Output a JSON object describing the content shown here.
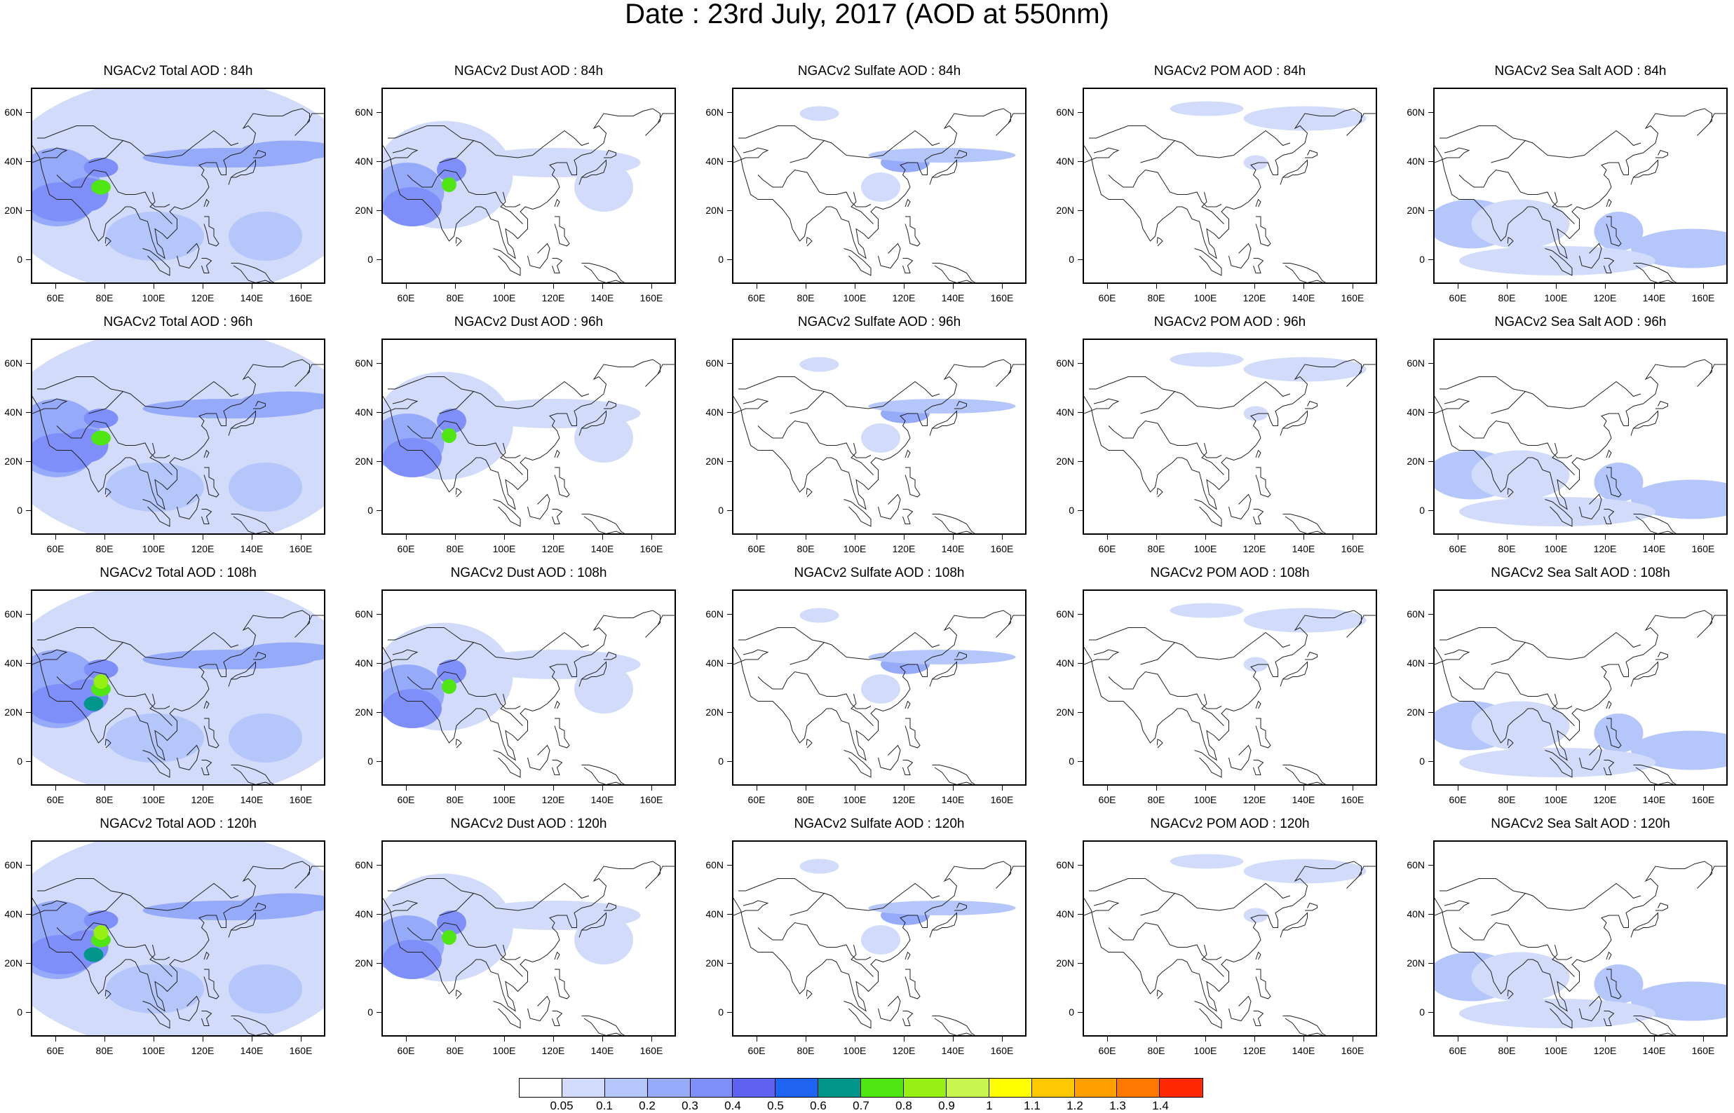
{
  "title": "Date : 23rd July, 2017 (AOD at 550nm)",
  "panels": [
    [
      "NGACv2 Total AOD : 84h",
      "NGACv2 Dust AOD : 84h",
      "NGACv2 Sulfate AOD : 84h",
      "NGACv2 POM AOD : 84h",
      "NGACv2 Sea Salt AOD : 84h"
    ],
    [
      "NGACv2 Total AOD : 96h",
      "NGACv2 Dust AOD : 96h",
      "NGACv2 Sulfate AOD : 96h",
      "NGACv2 POM AOD : 96h",
      "NGACv2 Sea Salt AOD : 96h"
    ],
    [
      "NGACv2 Total AOD : 108h",
      "NGACv2 Dust AOD : 108h",
      "NGACv2 Sulfate AOD : 108h",
      "NGACv2 POM AOD : 108h",
      "NGACv2 Sea Salt AOD : 108h"
    ],
    [
      "NGACv2 Total AOD : 120h",
      "NGACv2 Dust AOD : 120h",
      "NGACv2 Sulfate AOD : 120h",
      "NGACv2 POM AOD : 120h",
      "NGACv2 Sea Salt  AOD : 120h"
    ]
  ],
  "axes": {
    "x_ticks": [
      "60E",
      "80E",
      "100E",
      "120E",
      "140E",
      "160E"
    ],
    "y_ticks": [
      "60N",
      "40N",
      "20N",
      "0"
    ]
  },
  "colorbar": {
    "labels": [
      "0.05",
      "0.1",
      "0.2",
      "0.3",
      "0.4",
      "0.5",
      "0.6",
      "0.7",
      "0.8",
      "0.9",
      "1",
      "1.1",
      "1.2",
      "1.3",
      "1.4"
    ],
    "colors": [
      "#ffffff",
      "#d2dcfa",
      "#b4c6fa",
      "#96aafa",
      "#7f8ffa",
      "#5f62f0",
      "#1e64f0",
      "#00968c",
      "#50e614",
      "#96f014",
      "#c8f550",
      "#ffff00",
      "#ffc800",
      "#ffa000",
      "#ff7800",
      "#ff2800"
    ]
  }
}
